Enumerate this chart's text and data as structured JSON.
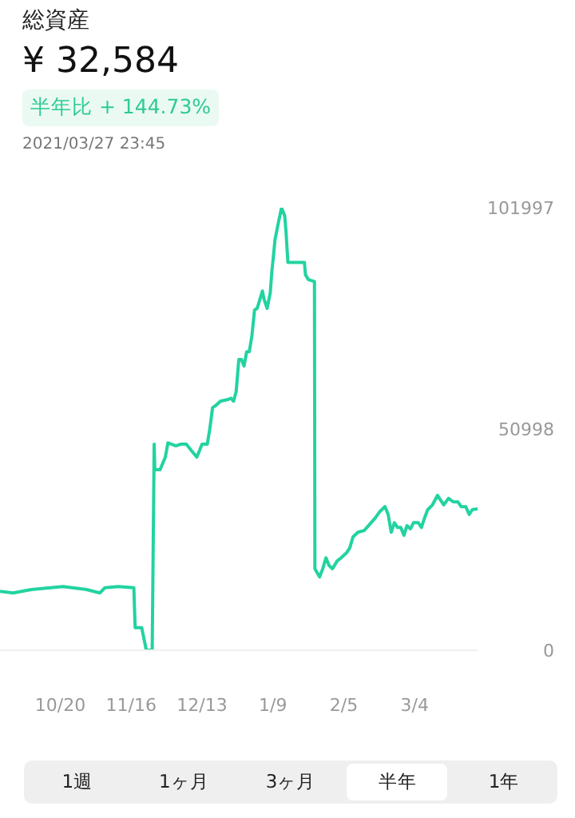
{
  "chart_data": {
    "type": "line",
    "title": "総資産",
    "subtitle": "¥ 32,584",
    "annotations": [
      "半年比 + 144.73%",
      "2021/03/27 23:45",
      "1週",
      "1ヶ月",
      "3ヶ月",
      "半年",
      "1年"
    ],
    "x": [
      "2020-09-27",
      "2020-10-02",
      "2020-10-09",
      "2020-10-21",
      "2020-10-30",
      "2020-11-04",
      "2020-11-06",
      "2020-11-11",
      "2020-11-17",
      "2020-11-17T12:00",
      "2020-11-20",
      "2020-11-21T18:00",
      "2020-11-24",
      "2020-11-24T18:00",
      "2020-11-25",
      "2020-11-27",
      "2020-11-29",
      "2020-11-30",
      "2020-12-03",
      "2020-12-05",
      "2020-12-07",
      "2020-12-09",
      "2020-12-11",
      "2020-12-12",
      "2020-12-13",
      "2020-12-15",
      "2020-12-16",
      "2020-12-17",
      "2020-12-18",
      "2020-12-20",
      "2020-12-23",
      "2020-12-24",
      "2020-12-25",
      "2020-12-26",
      "2020-12-27",
      "2020-12-28",
      "2020-12-29",
      "2020-12-30",
      "2020-12-31",
      "2021-01-01",
      "2021-01-02",
      "2021-01-03",
      "2021-01-05",
      "2021-01-05T14:00",
      "2021-01-06T19:00",
      "2021-01-08",
      "2021-01-08T14:00",
      "2021-01-09T05:00",
      "2021-01-09T19:00",
      "2021-01-11",
      "2021-01-12T07:00",
      "2021-01-13T12:00",
      "2021-01-14",
      "2021-01-14T17:00",
      "2021-01-21",
      "2021-01-21T10:00",
      "2021-01-22T14:00",
      "2021-01-24T20:00",
      "2021-01-25",
      "2021-01-26T19:00",
      "2021-01-28",
      "2021-01-29T05:00",
      "2021-01-30T10:00",
      "2021-01-31T17:00",
      "2021-02-02T12:00",
      "2021-02-04",
      "2021-02-06",
      "2021-02-07T07:00",
      "2021-02-08T12:00",
      "2021-02-10T10:00",
      "2021-02-12T19:00",
      "2021-02-15",
      "2021-02-17",
      "2021-02-18T19:00",
      "2021-02-20T17:00",
      "2021-02-21T22:00",
      "2021-02-23T02:00",
      "2021-02-24T07:00",
      "2021-02-25T12:00",
      "2021-02-26T17:00",
      "2021-02-27T22:00",
      "2021-03-01T02:00",
      "2021-03-02T10:00",
      "2021-03-03T14:00",
      "2021-03-05T10:00",
      "2021-03-06T14:00",
      "2021-03-07T19:00",
      "2021-03-09",
      "2021-03-10T19:00",
      "2021-03-12T17:00",
      "2021-03-13T22:00",
      "2021-03-15T02:00",
      "2021-03-16T22:00",
      "2021-03-18T17:00",
      "2021-03-20T12:00",
      "2021-03-21T17:00",
      "2021-03-23T12:00",
      "2021-03-24T19:00",
      "2021-03-26",
      "2021-03-27T23:45"
    ],
    "values": [
      13600,
      13200,
      14000,
      14700,
      14000,
      13200,
      14400,
      14700,
      14400,
      5200,
      5200,
      0,
      0,
      47500,
      41600,
      41600,
      44500,
      47800,
      47100,
      47500,
      47500,
      46000,
      44500,
      46000,
      47500,
      47500,
      51200,
      55900,
      56300,
      57400,
      57800,
      58100,
      57400,
      59600,
      67000,
      67000,
      65500,
      68800,
      68800,
      72500,
      78400,
      78800,
      82800,
      81000,
      78800,
      82400,
      87200,
      90900,
      94600,
      98300,
      101997,
      100100,
      96400,
      89400,
      89400,
      86500,
      85400,
      85000,
      18800,
      16900,
      18800,
      21300,
      19500,
      18800,
      20600,
      21300,
      22400,
      23600,
      26100,
      27200,
      27600,
      29100,
      30500,
      32000,
      33100,
      31300,
      27200,
      29400,
      28300,
      28300,
      26500,
      28700,
      28000,
      29400,
      29400,
      28300,
      30500,
      32400,
      33500,
      35700,
      34600,
      33500,
      35000,
      34200,
      34200,
      33100,
      33100,
      31300,
      32400,
      32584
    ],
    "color": "#22d3a0",
    "xlim": [
      "2020-09-27",
      "2021-03-27T23:45"
    ],
    "xticks": [
      {
        "value": "2020-10-20",
        "label": "10/20"
      },
      {
        "value": "2020-11-16",
        "label": "11/16"
      },
      {
        "value": "2020-12-13",
        "label": "12/13"
      },
      {
        "value": "2021-01-09",
        "label": "1/9"
      },
      {
        "value": "2021-02-05",
        "label": "2/5"
      },
      {
        "value": "2021-03-04",
        "label": "3/4"
      }
    ],
    "ylim": [
      0,
      101997
    ],
    "yticks": [
      0,
      50998,
      101997
    ],
    "grid": false,
    "legend": false,
    "marker": "none",
    "line_style": "solid"
  }
}
